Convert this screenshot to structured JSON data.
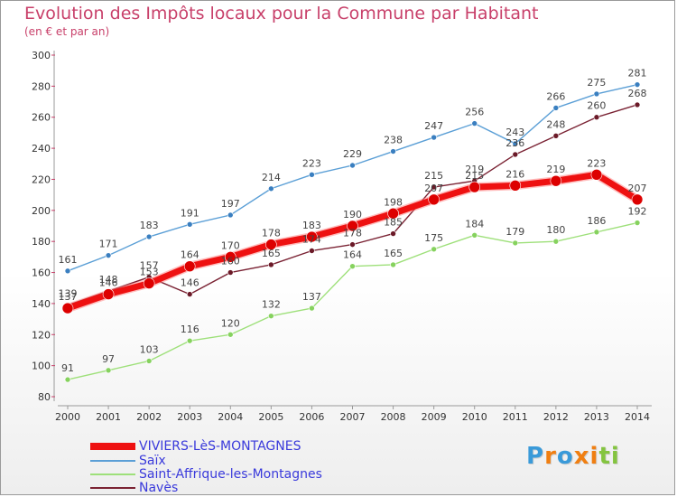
{
  "title": "Evolution des Impôts locaux pour la Commune par Habitant",
  "subtitle": "(en € et par an)",
  "logo_text": "Proxiti",
  "chart_data": {
    "type": "line",
    "x": [
      "2000",
      "2001",
      "2002",
      "2003",
      "2004",
      "2005",
      "2006",
      "2007",
      "2008",
      "2009",
      "2010",
      "2011",
      "2012",
      "2013",
      "2014"
    ],
    "ylim": [
      80,
      300
    ],
    "yticks": [
      80,
      100,
      120,
      140,
      160,
      180,
      200,
      220,
      240,
      260,
      280,
      300
    ],
    "grid": false,
    "legend_position": "bottom-left",
    "series": [
      {
        "name": "Saïx",
        "color": "#5b9fd6",
        "dot": "#3a7fc0",
        "width": 1.4,
        "values": [
          161,
          171,
          183,
          191,
          197,
          214,
          223,
          229,
          238,
          247,
          256,
          243,
          266,
          275,
          281
        ]
      },
      {
        "name": "Saint-Affrique-les-Montagnes",
        "color": "#9ee07a",
        "dot": "#86d25e",
        "width": 1.4,
        "values": [
          91,
          97,
          103,
          116,
          120,
          132,
          137,
          164,
          165,
          175,
          184,
          179,
          180,
          186,
          192
        ]
      },
      {
        "name": "Navès",
        "color": "#7a2233",
        "dot": "#6b1a28",
        "width": 1.4,
        "values": [
          139,
          148,
          157,
          146,
          160,
          165,
          174,
          178,
          185,
          215,
          219,
          236,
          248,
          260,
          268
        ]
      },
      {
        "name": "VIVIERS-LèS-MONTAGNES",
        "color": "#ee1111",
        "dot": "#dd0000",
        "width": 7,
        "values": [
          137,
          146,
          153,
          164,
          170,
          178,
          183,
          190,
          198,
          207,
          215,
          216,
          219,
          223,
          207
        ]
      }
    ],
    "data_labels": [
      {
        "text": "161"
      },
      {
        "text": "171"
      },
      {
        "text": "183"
      },
      {
        "text": "191"
      },
      {
        "text": "197"
      },
      {
        "text": "214"
      },
      {
        "text": "223"
      },
      {
        "text": "229"
      },
      {
        "text": "238"
      },
      {
        "text": "247"
      },
      {
        "text": "256"
      },
      {
        "text": "243"
      },
      {
        "text": "266"
      },
      {
        "text": "275"
      },
      {
        "text": "281"
      },
      {
        "text": "91"
      },
      {
        "text": "97"
      },
      {
        "text": "103"
      },
      {
        "text": "116"
      },
      {
        "text": "120"
      },
      {
        "text": "132"
      },
      {
        "text": "137"
      },
      {
        "text": "164"
      },
      {
        "text": "165"
      },
      {
        "text": "175"
      },
      {
        "text": "184"
      },
      {
        "text": "179"
      },
      {
        "text": "180"
      },
      {
        "text": "186"
      },
      {
        "text": "192"
      },
      {
        "text": "139"
      },
      {
        "text": "148"
      },
      {
        "text": "157"
      },
      {
        "text": "146"
      },
      {
        "text": "160"
      },
      {
        "text": "165"
      },
      {
        "text": "174"
      },
      {
        "text": "178"
      },
      {
        "text": "185"
      },
      {
        "text": "215"
      },
      {
        "text": "219"
      },
      {
        "text": "236"
      },
      {
        "text": "248"
      },
      {
        "text": "260"
      },
      {
        "text": "268"
      },
      {
        "text": "137"
      },
      {
        "text": "146"
      },
      {
        "text": "153"
      },
      {
        "text": "164"
      },
      {
        "text": "170"
      },
      {
        "text": "178"
      },
      {
        "text": "183"
      },
      {
        "text": "190"
      },
      {
        "text": "198"
      },
      {
        "text": "207"
      },
      {
        "text": "215"
      },
      {
        "text": "216"
      },
      {
        "text": "219"
      },
      {
        "text": "223"
      },
      {
        "text": "207"
      }
    ]
  }
}
